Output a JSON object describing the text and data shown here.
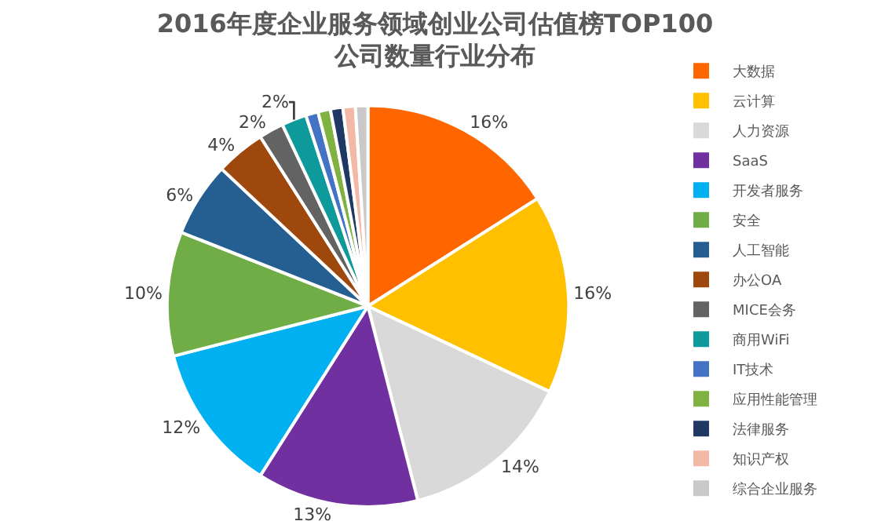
{
  "chart_data": {
    "type": "pie",
    "title": "2016年度企业服务领域创业公司估值榜TOP100\n公司数量行业分布",
    "categories": [
      "大数据",
      "云计算",
      "人力资源",
      "SaaS",
      "开发者服务",
      "安全",
      "人工智能",
      "办公OA",
      "MICE会务",
      "商用WiFi",
      "IT技术",
      "应用性能管理",
      "法律服务",
      "知识产权",
      "综合企业服务"
    ],
    "values": [
      16,
      16,
      14,
      13,
      12,
      10,
      6,
      4,
      2,
      2,
      1,
      1,
      1,
      1,
      1
    ],
    "value_labels": [
      "16%",
      "16%",
      "14%",
      "13%",
      "12%",
      "10%",
      "6%",
      "4%",
      "2%",
      "2%",
      null,
      null,
      null,
      null,
      null
    ],
    "colors": [
      "#ff6600",
      "#ffc000",
      "#d9d9d9",
      "#7030a0",
      "#00b0f0",
      "#70ad47",
      "#255e91",
      "#9e480e",
      "#636363",
      "#0e9a9a",
      "#4472c4",
      "#7fb241",
      "#203864",
      "#f4b9a6",
      "#c9c9c9"
    ],
    "legend": "right"
  }
}
